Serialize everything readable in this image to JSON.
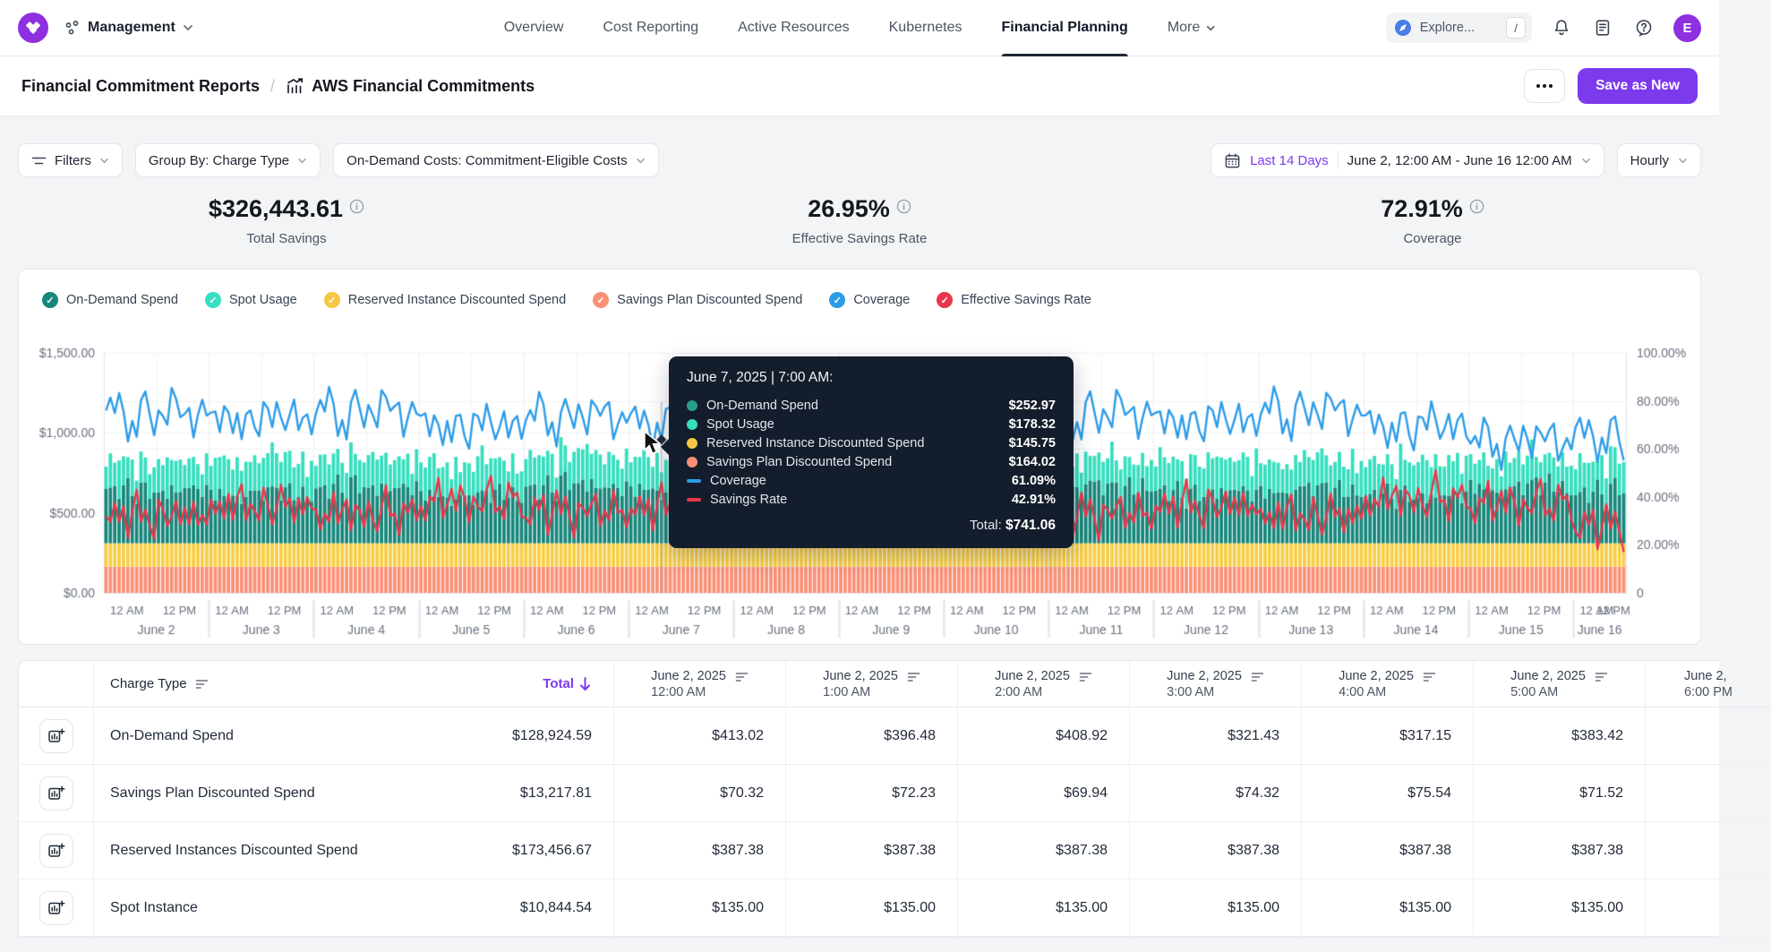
{
  "nav": {
    "workspace": "Management",
    "tabs": [
      {
        "label": "Overview",
        "active": false,
        "chevron": false
      },
      {
        "label": "Cost Reporting",
        "active": false,
        "chevron": false
      },
      {
        "label": "Active Resources",
        "active": false,
        "chevron": false
      },
      {
        "label": "Kubernetes",
        "active": false,
        "chevron": false
      },
      {
        "label": "Financial Planning",
        "active": true,
        "chevron": false
      },
      {
        "label": "More",
        "active": false,
        "chevron": true
      }
    ],
    "explore": {
      "label": "Explore...",
      "shortcut": "/"
    },
    "avatar_initial": "E"
  },
  "breadcrumb": {
    "parent": "Financial Commitment Reports",
    "separator": "/",
    "current": "AWS Financial Commitments"
  },
  "actions": {
    "save_as_new": "Save as New"
  },
  "filters": {
    "filters_label": "Filters",
    "group_by": "Group By: Charge Type",
    "on_demand_costs": "On-Demand Costs: Commitment-Eligible Costs",
    "date_preset": "Last 14 Days",
    "date_range": "June 2, 12:00 AM  -  June 16 12:00 AM",
    "granularity": "Hourly"
  },
  "kpis": [
    {
      "value": "$326,443.61",
      "label": "Total Savings"
    },
    {
      "value": "26.95%",
      "label": "Effective Savings Rate"
    },
    {
      "value": "72.91%",
      "label": "Coverage"
    }
  ],
  "legend": [
    {
      "label": "On-Demand Spend",
      "color": "#17877B"
    },
    {
      "label": "Spot Usage",
      "color": "#36DFBF"
    },
    {
      "label": "Reserved Instance Discounted Spend",
      "color": "#F5C843"
    },
    {
      "label": "Savings Plan Discounted Spend",
      "color": "#FB9077"
    },
    {
      "label": "Coverage",
      "color": "#2D9CE8"
    },
    {
      "label": "Effective Savings Rate",
      "color": "#E8374B"
    }
  ],
  "tooltip": {
    "title": "June 7, 2025  |  7:00 AM:",
    "rows": [
      {
        "label": "On-Demand Spend",
        "value": "$252.97",
        "marker": "dot",
        "color": "#2A9D8F"
      },
      {
        "label": "Spot Usage",
        "value": "$178.32",
        "marker": "dot",
        "color": "#36DFBF"
      },
      {
        "label": "Reserved Instance Discounted Spend",
        "value": "$145.75",
        "marker": "dot",
        "color": "#F5C843"
      },
      {
        "label": "Savings Plan Discounted Spend",
        "value": "$164.02",
        "marker": "dot",
        "color": "#FB9077"
      },
      {
        "label": "Coverage",
        "value": "61.09%",
        "marker": "dash",
        "color": "#2D9CE8"
      },
      {
        "label": "Savings Rate",
        "value": "42.91%",
        "marker": "dash",
        "color": "#E8374B"
      }
    ],
    "total_label": "Total:",
    "total_value": "$741.06"
  },
  "chart_data": {
    "type": "combo: hourly stacked bars (left $ axis) + percent lines (right % axis)",
    "left_axis": {
      "ticks": [
        "$1,500.00",
        "$1,000.00",
        "$500.00",
        "$0.00"
      ],
      "max": 1500
    },
    "right_axis": {
      "ticks": [
        "100.00%",
        "80.00%",
        "60.00%",
        "40.00%",
        "20.00%",
        "0"
      ],
      "max": 100
    },
    "x_days": [
      "June 2",
      "June 3",
      "June 4",
      "June 5",
      "June 6",
      "June 7",
      "June 8",
      "June 9",
      "June 10",
      "June 11",
      "June 12",
      "June 13",
      "June 14",
      "June 15",
      "June 16"
    ],
    "x_hour_labels": [
      "12 AM",
      "12 PM"
    ],
    "days_rendered": 14.5,
    "bar_series": [
      {
        "name": "Savings Plan Discounted Spend",
        "color": "#FB9077",
        "constant": 164
      },
      {
        "name": "Reserved Instance Discounted Spend",
        "color": "#F8CE46",
        "constant": 146
      },
      {
        "name": "On-Demand Spend",
        "color": "#17877B",
        "hour_pattern": [
          342,
          312,
          356,
          291,
          331,
          362,
          306,
          253,
          347,
          371,
          316,
          336,
          301,
          352,
          326,
          361,
          296,
          341,
          366,
          311,
          331,
          356,
          286,
          321
        ],
        "day_multiplier": [
          1.0,
          0.95,
          1.06,
          0.9,
          1.1,
          1.0,
          0.97,
          1.04,
          0.92,
          1.08,
          0.96,
          1.02,
          0.9,
          1.07,
          0.98
        ]
      },
      {
        "name": "Spot Usage",
        "color": "#36DFBF",
        "hour_pattern": [
          152,
          212,
          172,
          236,
          186,
          156,
          226,
          178,
          241,
          162,
          202,
          176,
          216,
          191,
          251,
          166,
          231,
          196,
          171,
          221,
          186,
          206,
          156,
          211
        ],
        "day_multiplier": [
          0.9,
          1.1,
          0.95,
          1.05,
          1.0,
          1.0,
          1.08,
          0.92,
          1.12,
          0.88,
          1.04,
          0.96,
          1.1,
          0.9,
          1.02
        ]
      }
    ],
    "line_series": [
      {
        "name": "Coverage",
        "color": "#2D9CE8",
        "hour_pattern": [
          72,
          75,
          68,
          78,
          73,
          62,
          70,
          61,
          74,
          77,
          69,
          63,
          75,
          72,
          66,
          79,
          74,
          68,
          72,
          76,
          63,
          70,
          74,
          67
        ],
        "day_offset": [
          4,
          2,
          5,
          -1,
          3,
          0,
          6,
          2,
          -2,
          4,
          1,
          5,
          -1,
          -7,
          -5
        ]
      },
      {
        "name": "Effective Savings Rate",
        "color": "#E8374B",
        "hour_pattern": [
          35,
          30,
          38,
          33,
          42,
          28,
          36,
          43,
          31,
          39,
          34,
          27,
          40,
          35,
          30,
          37,
          44,
          32,
          36,
          29,
          41,
          34,
          38,
          31
        ],
        "day_offset": [
          -3,
          1,
          -2,
          3,
          -1,
          0,
          2,
          -4,
          3,
          -2,
          1,
          -3,
          4,
          2,
          -7
        ]
      }
    ],
    "hover_point": {
      "day_index": 5,
      "hour": 7,
      "coverage_pct": 61.09,
      "savings_rate_pct": 42.91
    }
  },
  "table": {
    "charge_type_header": "Charge Type",
    "total_header": "Total",
    "columns": [
      {
        "date": "June 2, 2025",
        "time": "12:00 AM"
      },
      {
        "date": "June 2, 2025",
        "time": "1:00 AM"
      },
      {
        "date": "June 2, 2025",
        "time": "2:00 AM"
      },
      {
        "date": "June 2, 2025",
        "time": "3:00 AM"
      },
      {
        "date": "June 2, 2025",
        "time": "4:00 AM"
      },
      {
        "date": "June 2, 2025",
        "time": "5:00 AM"
      }
    ],
    "clipped_column": {
      "date": "June 2,",
      "time": "6:00 PM"
    },
    "rows": [
      {
        "name": "On-Demand Spend",
        "total": "$128,924.59",
        "values": [
          "$413.02",
          "$396.48",
          "$408.92",
          "$321.43",
          "$317.15",
          "$383.42"
        ]
      },
      {
        "name": "Savings Plan Discounted Spend",
        "total": "$13,217.81",
        "values": [
          "$70.32",
          "$72.23",
          "$69.94",
          "$74.32",
          "$75.54",
          "$71.52"
        ]
      },
      {
        "name": "Reserved Instances Discounted Spend",
        "total": "$173,456.67",
        "values": [
          "$387.38",
          "$387.38",
          "$387.38",
          "$387.38",
          "$387.38",
          "$387.38"
        ]
      },
      {
        "name": "Spot Instance",
        "total": "$10,844.54",
        "values": [
          "$135.00",
          "$135.00",
          "$135.00",
          "$135.00",
          "$135.00",
          "$135.00"
        ]
      }
    ]
  }
}
